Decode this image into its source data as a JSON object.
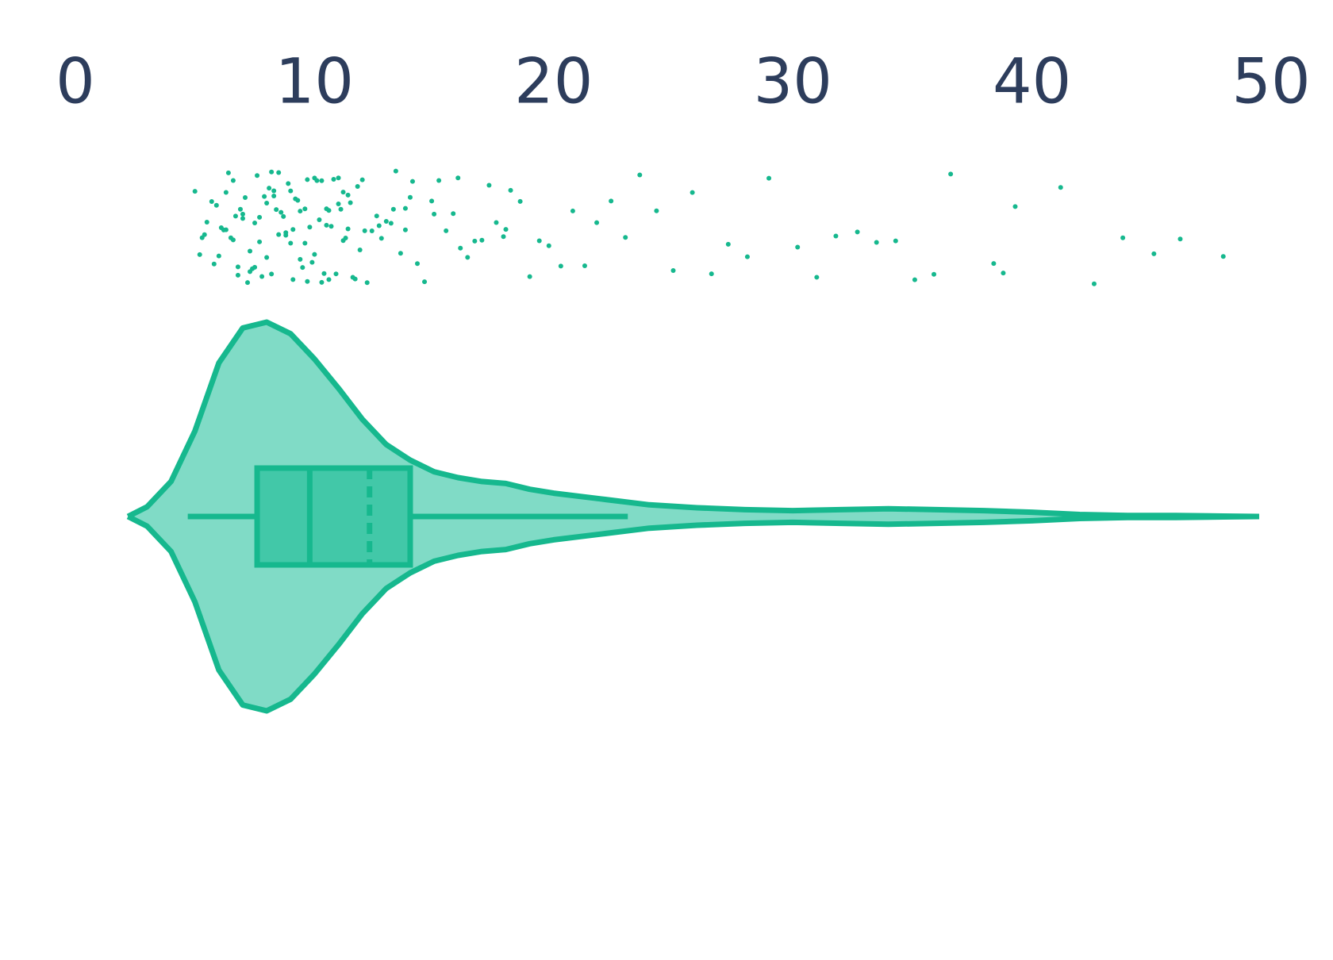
{
  "chart_data": {
    "type": "violin",
    "color": "#16b88e",
    "fill_color": "#80dbc6",
    "box_color": "#42c8a8",
    "tick_color": "#2d3d5c",
    "xlim": [
      0,
      50
    ],
    "xticks": [
      0,
      10,
      20,
      30,
      40,
      50
    ],
    "violin": {
      "x": [
        2.2,
        3,
        4,
        5,
        6,
        7,
        8,
        9,
        10,
        11,
        12,
        13,
        14,
        15,
        16,
        17,
        18,
        19,
        20,
        22,
        24,
        26,
        28,
        30,
        32,
        34,
        36,
        38,
        40,
        42,
        44,
        46,
        48,
        49.5
      ],
      "density": [
        0,
        0.05,
        0.18,
        0.44,
        0.79,
        0.97,
        1,
        0.94,
        0.81,
        0.66,
        0.5,
        0.37,
        0.29,
        0.23,
        0.2,
        0.18,
        0.17,
        0.14,
        0.12,
        0.09,
        0.06,
        0.045,
        0.035,
        0.03,
        0.035,
        0.04,
        0.035,
        0.03,
        0.022,
        0.01,
        0.005,
        0.005,
        0.002,
        0
      ]
    },
    "box": {
      "whisker_low": 4.7,
      "q1": 7.6,
      "median": 9.8,
      "mean": 12.3,
      "q3": 14.0,
      "whisker_high": 23.1
    },
    "points": [
      5.0,
      5.2,
      5.4,
      5.5,
      5.7,
      5.8,
      6.0,
      6.1,
      6.2,
      6.3,
      6.4,
      6.5,
      6.6,
      6.7,
      6.8,
      6.9,
      7.0,
      7.1,
      7.2,
      7.3,
      7.4,
      7.5,
      7.6,
      7.7,
      7.8,
      7.9,
      8.0,
      8.1,
      8.2,
      8.3,
      8.4,
      8.5,
      8.6,
      8.7,
      8.8,
      8.9,
      9.0,
      9.1,
      9.2,
      9.3,
      9.4,
      9.5,
      9.6,
      9.7,
      9.8,
      9.9,
      10.0,
      10.1,
      10.2,
      10.3,
      10.4,
      10.5,
      10.6,
      10.7,
      10.8,
      10.9,
      11.0,
      11.1,
      11.2,
      11.3,
      11.4,
      11.5,
      11.6,
      11.7,
      11.8,
      11.9,
      12.0,
      12.2,
      12.4,
      12.6,
      12.8,
      13.0,
      13.2,
      13.4,
      13.6,
      13.8,
      14.0,
      14.3,
      14.6,
      14.9,
      15.2,
      15.5,
      15.8,
      16.1,
      16.4,
      16.7,
      17.0,
      17.3,
      17.6,
      17.9,
      18.2,
      18.6,
      19.0,
      19.4,
      19.8,
      20.3,
      20.8,
      21.3,
      21.8,
      22.4,
      23.0,
      23.6,
      24.3,
      25.0,
      25.8,
      26.6,
      27.3,
      28.1,
      29.0,
      30.2,
      31.0,
      31.8,
      32.7,
      33.5,
      34.3,
      35.1,
      35.9,
      36.6,
      38.4,
      38.8,
      39.3,
      41.2,
      42.6,
      43.8,
      45.1,
      46.2,
      48.0,
      5.3,
      5.9,
      6.3,
      6.6,
      7.0,
      7.3,
      7.7,
      8.0,
      8.2,
      8.5,
      8.8,
      9.1,
      9.4,
      9.6,
      10.0,
      10.3,
      10.6,
      11.0,
      11.4,
      12.1,
      12.7,
      13.3,
      14.1,
      15.0,
      6.8,
      7.5,
      8.3,
      9.0,
      9.7,
      10.5,
      11.2,
      13.8,
      16.0,
      18.0
    ]
  }
}
